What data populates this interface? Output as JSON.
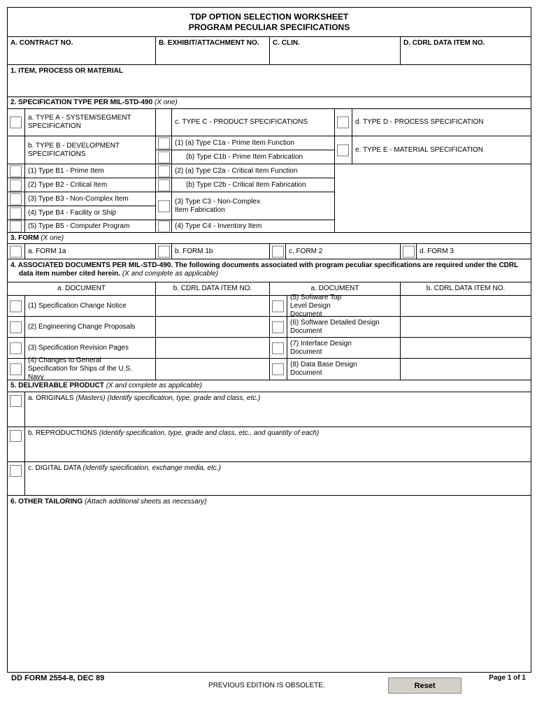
{
  "title": {
    "line1": "TDP OPTION SELECTION WORKSHEET",
    "line2": "PROGRAM PECULIAR SPECIFICATIONS"
  },
  "header_fields": {
    "contract_no": {
      "label": "A. CONTRACT NO.",
      "value": ""
    },
    "exhibit": {
      "label": "B. EXHIBIT/ATTACHMENT NO.",
      "value": ""
    },
    "clin": {
      "label": "C. CLIN.",
      "value": ""
    },
    "cdrl": {
      "label": "D. CDRL DATA ITEM NO.",
      "value": ""
    }
  },
  "item": {
    "label": "1. ITEM, PROCESS OR MATERIAL",
    "value": ""
  },
  "spec_type": {
    "label": "2. SPECIFICATION TYPE PER MIL-STD-490",
    "note": "(X one)",
    "type_a": "a. TYPE A - SYSTEM/SEGMENT SPECIFICATION",
    "type_b": "b. TYPE B - DEVELOPMENT SPECIFICATIONS",
    "type_c": "c. TYPE C - PRODUCT SPECIFICATIONS",
    "type_d": "d. TYPE D - PROCESS SPECIFICATION",
    "type_e": "e. TYPE E - MATERIAL SPECIFICATION",
    "b_items": [
      "(1) Type B1 - Prime Item",
      "(2) Type B2 - Critical Item",
      "(3) Type B3 - Non-Complex Item",
      "(4) Type B4 - Facility or Ship",
      "(5) Type B5 - Computer Program"
    ],
    "c_items": [
      "(1) (a) Type C1a - Prime Item Function",
      "(b) Type C1b - Prime Item Fabrication",
      "(2) (a) Type C2a - Critical Item Function",
      "(b) Type C2b - Critical Item Fabrication",
      "(3) Type C3 - Non-Complex Item Fabrication",
      "(4) Type C4 - Inventory Item"
    ]
  },
  "form": {
    "label": "3. FORM",
    "note": "(X one)",
    "options": [
      "a. FORM 1a",
      "b. FORM 1b",
      "c. FORM 2",
      "d. FORM 3"
    ]
  },
  "assoc": {
    "label": "4. ASSOCIATED DOCUMENTS PER MIL-STD-490. The following documents associated with program peculiar specifications are required under the CDRL data item number cited herein.",
    "note": "(X and complete as applicable)",
    "col_document": "a. DOCUMENT",
    "col_cdrl": "b. CDRL DATA ITEM NO.",
    "left": [
      "(1) Specification Change Notice",
      "(2) Engineering Change Proposals",
      "(3) Specification Revision Pages",
      "(4) Changes to General Specification for Ships of the U.S. Navy"
    ],
    "right": [
      "(5) Software Top Level Design Document",
      "(6) Software Detailed Design Document",
      "(7) Interface Design Document",
      "(8) Data Base Design Document"
    ]
  },
  "deliverable": {
    "label": "5. DELIVERABLE PRODUCT",
    "note": "(X and complete as applicable)",
    "items": [
      {
        "label": "a. ORIGINALS",
        "note": "(Masters) (Identify specification, type, grade and class, etc.)"
      },
      {
        "label": "b. REPRODUCTIONS",
        "note": "(Identify specification, type, grade and class, etc., and quantity of each)"
      },
      {
        "label": "c. DIGITAL DATA",
        "note": "(Identify specification, exchange media, etc.)"
      }
    ]
  },
  "other": {
    "label": "6. OTHER TAILORING",
    "note": "(Attach additional sheets as necessary)"
  },
  "footer": {
    "form_id": "DD FORM 2554-8, DEC 89",
    "obsolete": "PREVIOUS EDITION IS OBSOLETE.",
    "reset": "Reset",
    "page": "Page 1 of 1"
  }
}
